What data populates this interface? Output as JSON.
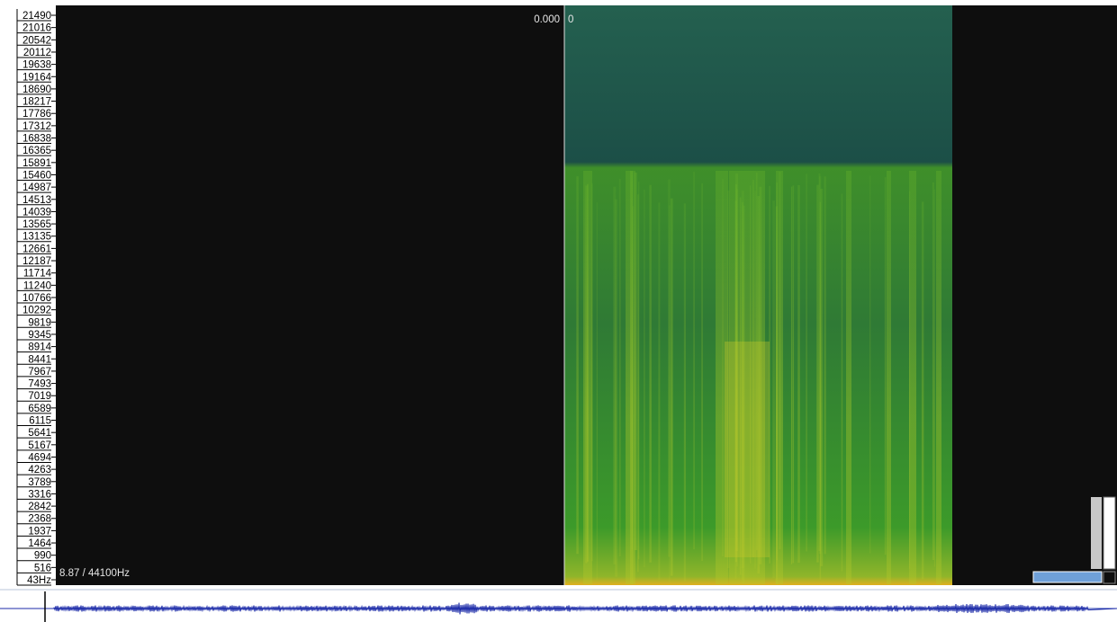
{
  "frequency_axis": {
    "labels": [
      "21490",
      "21016",
      "20542",
      "20112",
      "19638",
      "19164",
      "18690",
      "18217",
      "17786",
      "17312",
      "16838",
      "16365",
      "15891",
      "15460",
      "14987",
      "14513",
      "14039",
      "13565",
      "13135",
      "12661",
      "12187",
      "11714",
      "11240",
      "10766",
      "10292",
      "9819",
      "9345",
      "8914",
      "8441",
      "7967",
      "7493",
      "7019",
      "6589",
      "6115",
      "5641",
      "5167",
      "4694",
      "4263",
      "3789",
      "3316",
      "2842",
      "2368",
      "1937",
      "1464",
      "990",
      "516",
      "43Hz"
    ]
  },
  "overlay": {
    "time_left": "0.000",
    "time_right": "0",
    "status": "8.87 / 44100Hz"
  }
}
